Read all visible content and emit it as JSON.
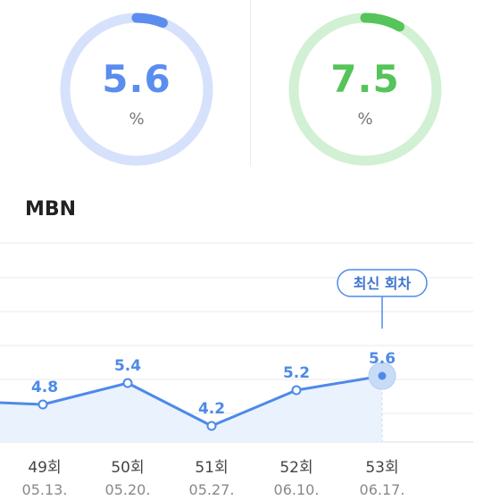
{
  "gauges": [
    {
      "value": "5.6",
      "unit": "%",
      "progress": 0.06,
      "color": "#5b8def",
      "track": "#d6e2fb"
    },
    {
      "value": "7.5",
      "unit": "%",
      "progress": 0.08,
      "color": "#55c45a",
      "track": "#d2f0d3"
    }
  ],
  "section_title": "MBN",
  "latest_badge": "최신 회차",
  "colors": {
    "line": "#4d8ae8",
    "fill": "#eaf2fd",
    "grid": "#eaeaea",
    "dashed": "#cfdcf3"
  },
  "chart_data": {
    "type": "line",
    "categories": [
      "49회",
      "50회",
      "51회",
      "52회",
      "53회"
    ],
    "dates": [
      "05.13.",
      "05.20.",
      "05.27.",
      "06.10.",
      "06.17."
    ],
    "values": [
      4.8,
      5.4,
      4.2,
      5.2,
      5.6
    ],
    "labels": [
      "4.8",
      "5.4",
      "4.2",
      "5.2",
      "5.6"
    ],
    "highlight_index": 4,
    "ylim": [
      0,
      10
    ],
    "grid": true
  }
}
